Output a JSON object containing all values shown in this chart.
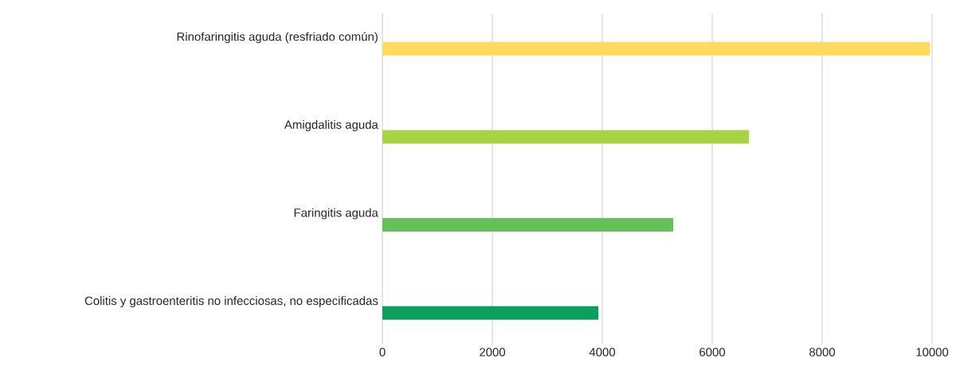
{
  "chart_data": {
    "type": "bar",
    "orientation": "horizontal",
    "categories": [
      "Rinofaringitis aguda (resfriado común)",
      "Amigdalitis aguda",
      "Faringitis aguda",
      "Colitis y gastroenteritis no infecciosas, no especificadas"
    ],
    "values": [
      9960,
      6670,
      5290,
      3930
    ],
    "colors": [
      "#fddb5b",
      "#a8d345",
      "#66c05a",
      "#0b9e5c"
    ],
    "xlim": [
      0,
      10000
    ],
    "xticks": [
      0,
      2000,
      4000,
      6000,
      8000,
      10000
    ],
    "grid": "x"
  }
}
